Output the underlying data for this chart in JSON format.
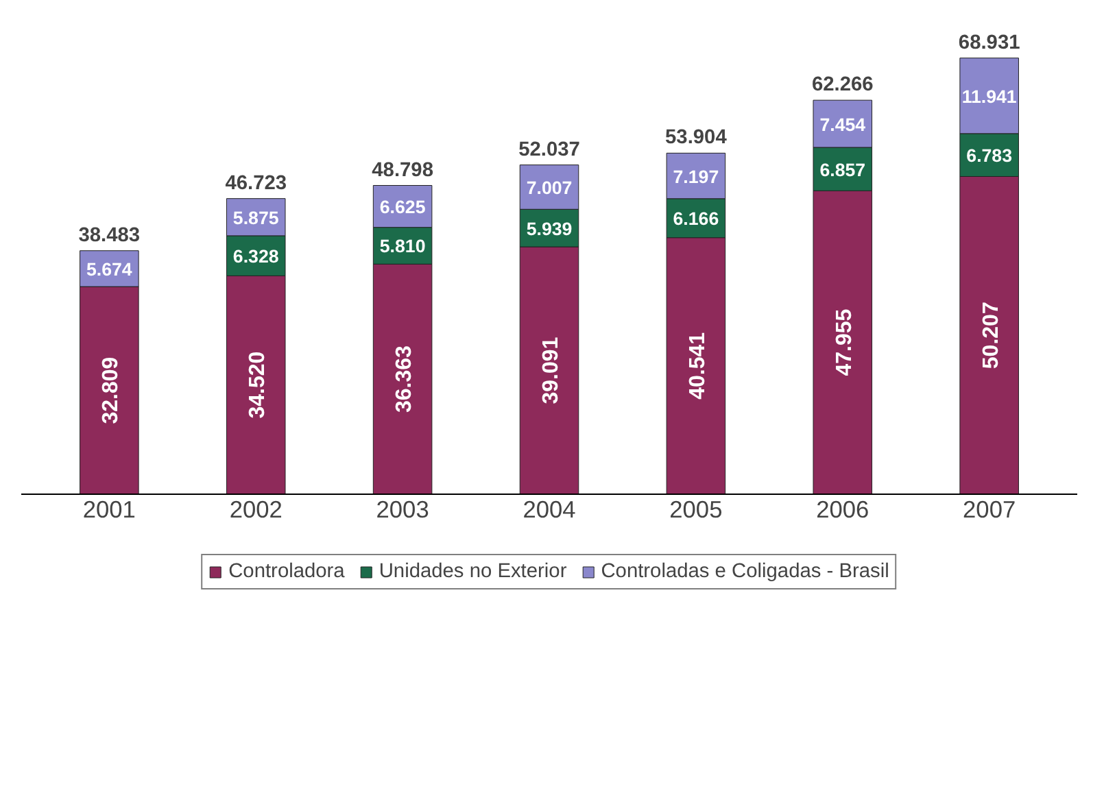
{
  "chart_data": {
    "type": "bar",
    "stacked": true,
    "categories": [
      "2001",
      "2002",
      "2003",
      "2004",
      "2005",
      "2006",
      "2007"
    ],
    "series": [
      {
        "name": "Controladora",
        "color": "#8e2a5a",
        "values": [
          32809,
          34520,
          36363,
          39091,
          40541,
          47955,
          50207
        ],
        "value_labels": [
          "32.809",
          "34.520",
          "36.363",
          "39.091",
          "40.541",
          "47.955",
          "50.207"
        ]
      },
      {
        "name": "Unidades no Exterior",
        "color": "#1b6b4a",
        "values": [
          null,
          6328,
          5810,
          5939,
          6166,
          6857,
          6783
        ],
        "value_labels": [
          null,
          "6.328",
          "5.810",
          "5.939",
          "6.166",
          "6.857",
          "6.783"
        ]
      },
      {
        "name": "Controladas e Coligadas - Brasil",
        "color": "#8a87cc",
        "values": [
          5674,
          5875,
          6625,
          7007,
          7197,
          7454,
          11941
        ],
        "value_labels": [
          "5.674",
          "5.875",
          "6.625",
          "7.007",
          "7.197",
          "7.454",
          "11.941"
        ]
      }
    ],
    "totals": [
      "38.483",
      "46.723",
      "48.798",
      "52.037",
      "53.904",
      "62.266",
      "68.931"
    ],
    "legend": "bottom",
    "grid": false
  }
}
